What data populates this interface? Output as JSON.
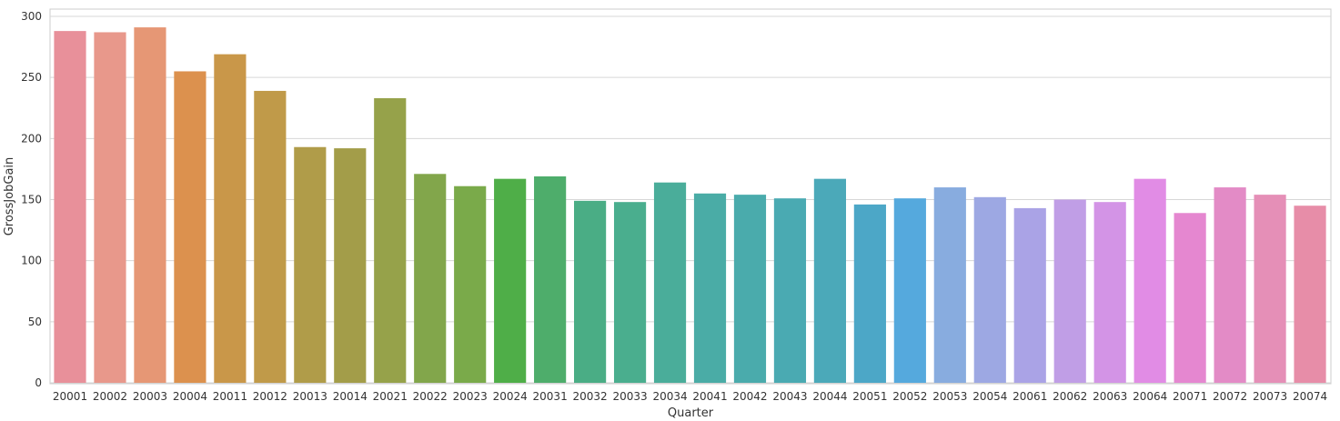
{
  "chart_data": {
    "type": "bar",
    "xlabel": "Quarter",
    "ylabel": "GrossJobGain",
    "ylim": [
      0,
      300
    ],
    "yticks": [
      0,
      50,
      100,
      150,
      200,
      250,
      300
    ],
    "grid": true,
    "categories": [
      "20001",
      "20002",
      "20003",
      "20004",
      "20011",
      "20012",
      "20013",
      "20014",
      "20021",
      "20022",
      "20023",
      "20024",
      "20031",
      "20032",
      "20033",
      "20034",
      "20041",
      "20042",
      "20043",
      "20044",
      "20051",
      "20052",
      "20053",
      "20054",
      "20061",
      "20062",
      "20063",
      "20064",
      "20071",
      "20072",
      "20073",
      "20074"
    ],
    "values": [
      288,
      287,
      291,
      255,
      269,
      239,
      193,
      192,
      233,
      171,
      161,
      167,
      169,
      149,
      148,
      164,
      155,
      154,
      151,
      167,
      146,
      151,
      160,
      152,
      143,
      150,
      148,
      167,
      139,
      160,
      154,
      145
    ],
    "colors": [
      "#e8909a",
      "#e8988b",
      "#e69775",
      "#dc914e",
      "#c99749",
      "#c09a49",
      "#b09c49",
      "#a39d49",
      "#96a24a",
      "#82a64b",
      "#7aaa4a",
      "#4fae48",
      "#4ead6b",
      "#4aad85",
      "#4aae8e",
      "#4aad9a",
      "#4aaca6",
      "#4aabac",
      "#4aaab2",
      "#4ba9b9",
      "#4ca7c7",
      "#55a9dd",
      "#88acdf",
      "#9da8e3",
      "#aaa3e6",
      "#c09ee6",
      "#d394e6",
      "#e18ce5",
      "#e587d0",
      "#e38bc6",
      "#e58fb7",
      "#e78da8"
    ]
  }
}
